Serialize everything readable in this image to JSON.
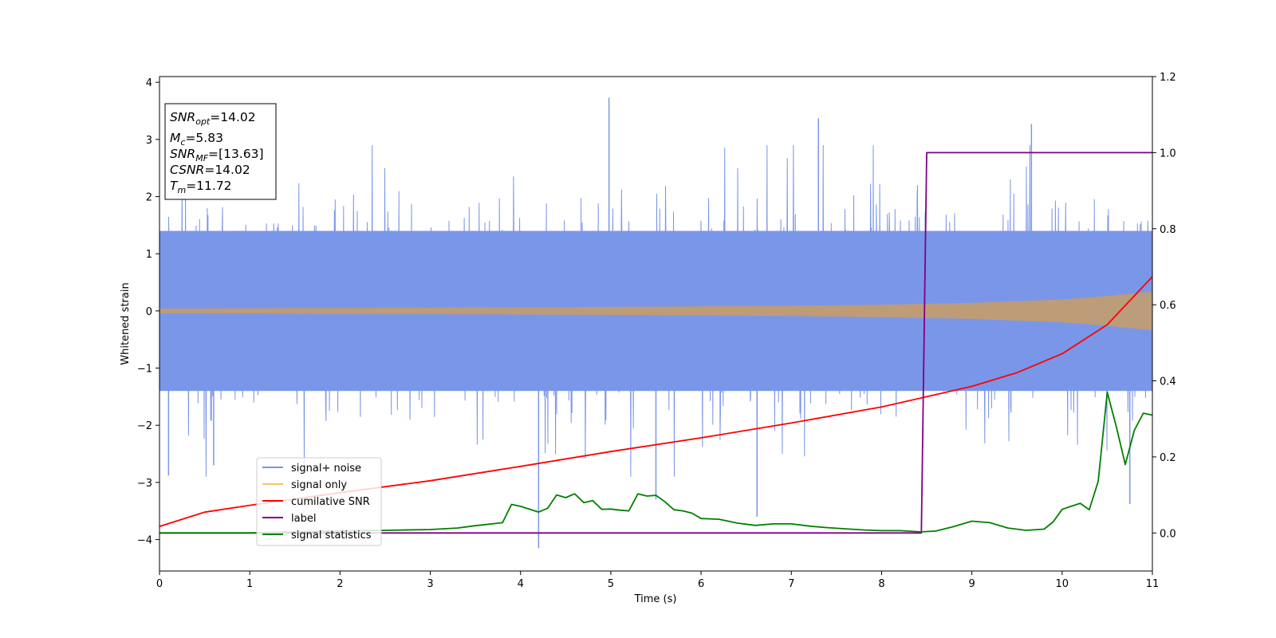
{
  "chart_data": {
    "type": "line",
    "xlabel": "Time (s)",
    "ylabel": "Whitened strain",
    "xlim": [
      0,
      11
    ],
    "ylim_left": [
      -4.55,
      4.1
    ],
    "ylim_right": [
      -0.1,
      1.2
    ],
    "x_ticks": [
      0,
      1,
      2,
      3,
      4,
      5,
      6,
      7,
      8,
      9,
      10,
      11
    ],
    "x_tick_labels": [
      "0",
      "1",
      "2",
      "3",
      "4",
      "5",
      "6",
      "7",
      "8",
      "9",
      "10",
      "11"
    ],
    "y_left_ticks": [
      -4,
      -3,
      -2,
      -1,
      0,
      1,
      2,
      3,
      4
    ],
    "y_left_tick_labels": [
      "−4",
      "−3",
      "−2",
      "−1",
      "0",
      "1",
      "2",
      "3",
      "4"
    ],
    "y_right_ticks": [
      0.0,
      0.2,
      0.4,
      0.6,
      0.8,
      1.0,
      1.2
    ],
    "y_right_tick_labels": [
      "0.0",
      "0.2",
      "0.4",
      "0.6",
      "0.8",
      "1.0",
      "1.2"
    ],
    "stats_box": [
      {
        "base": "SNR",
        "sub": "opt",
        "value": "=14.02"
      },
      {
        "base": "M",
        "sub": "c",
        "value": "=5.83"
      },
      {
        "base": "SNR",
        "sub": "MF",
        "value": "=[13.63]"
      },
      {
        "base": "CSNR",
        "sub": "",
        "value": "=14.02"
      },
      {
        "base": "T",
        "sub": "m",
        "value": "=11.72"
      }
    ],
    "legend": {
      "location": "lower left",
      "entries": [
        {
          "label": "signal+ noise",
          "color": "#7a96e8"
        },
        {
          "label": "signal only",
          "color": "#f5c26b"
        },
        {
          "label": "cumilative SNR",
          "color": "#ff0000"
        },
        {
          "label": "label",
          "color": "#800080"
        },
        {
          "label": "signal statistics",
          "color": "#008000"
        }
      ]
    },
    "series": [
      {
        "name": "signal+ noise",
        "axis": "left",
        "color": "#7a96e8",
        "kind": "noise",
        "core_amplitude": 1.4,
        "extreme_peaks": [
          {
            "x": 4.98,
            "y": 3.73
          },
          {
            "x": 9.66,
            "y": 3.27
          },
          {
            "x": 7.3,
            "y": 3.37
          },
          {
            "x": 4.2,
            "y": -4.15
          },
          {
            "x": 6.62,
            "y": -3.6
          },
          {
            "x": 5.5,
            "y": -3.3
          },
          {
            "x": 10.75,
            "y": -3.38
          },
          {
            "x": 0.1,
            "y": -2.88
          },
          {
            "x": 0.6,
            "y": -2.7
          }
        ]
      },
      {
        "name": "signal only",
        "axis": "left",
        "color": "#f5c26b",
        "kind": "chirp",
        "envelope": {
          "x": [
            0,
            2,
            4,
            6,
            7,
            8,
            9,
            10,
            10.5,
            11
          ],
          "y": [
            0.04,
            0.05,
            0.06,
            0.08,
            0.09,
            0.11,
            0.14,
            0.2,
            0.26,
            0.34
          ]
        }
      },
      {
        "name": "cumilative SNR",
        "axis": "left",
        "color": "#ff0000",
        "x": [
          0,
          0.5,
          1,
          2,
          3,
          4,
          5,
          6,
          7,
          8,
          8.5,
          9,
          9.5,
          10,
          10.5,
          11
        ],
        "y": [
          -3.77,
          -3.52,
          -3.4,
          -3.18,
          -2.97,
          -2.72,
          -2.46,
          -2.22,
          -1.96,
          -1.68,
          -1.5,
          -1.32,
          -1.08,
          -0.75,
          -0.24,
          0.6
        ]
      },
      {
        "name": "label",
        "axis": "right",
        "color": "#800080",
        "x": [
          0,
          8.44,
          8.5,
          11
        ],
        "y": [
          0.0,
          0.0,
          1.0,
          1.0
        ]
      },
      {
        "name": "signal statistics",
        "axis": "right",
        "color": "#008000",
        "x": [
          0,
          0.5,
          1,
          1.5,
          2,
          2.5,
          3,
          3.3,
          3.5,
          3.8,
          3.9,
          4.0,
          4.2,
          4.3,
          4.4,
          4.5,
          4.6,
          4.7,
          4.8,
          4.9,
          5.0,
          5.1,
          5.2,
          5.3,
          5.4,
          5.5,
          5.6,
          5.7,
          5.8,
          5.9,
          6.0,
          6.2,
          6.4,
          6.6,
          6.8,
          7.0,
          7.2,
          7.4,
          7.6,
          7.8,
          8.0,
          8.2,
          8.44,
          8.6,
          8.8,
          9.0,
          9.2,
          9.4,
          9.6,
          9.8,
          9.9,
          10.0,
          10.1,
          10.2,
          10.3,
          10.4,
          10.5,
          10.6,
          10.7,
          10.8,
          10.9,
          11.0
        ],
        "y": [
          0.0,
          0.0,
          0.0,
          0.003,
          0.005,
          0.007,
          0.009,
          0.013,
          0.019,
          0.027,
          0.075,
          0.07,
          0.055,
          0.065,
          0.1,
          0.093,
          0.103,
          0.08,
          0.085,
          0.062,
          0.063,
          0.06,
          0.058,
          0.103,
          0.097,
          0.099,
          0.082,
          0.061,
          0.058,
          0.052,
          0.038,
          0.036,
          0.026,
          0.02,
          0.024,
          0.024,
          0.018,
          0.014,
          0.011,
          0.008,
          0.006,
          0.006,
          0.003,
          0.005,
          0.017,
          0.031,
          0.027,
          0.013,
          0.007,
          0.01,
          0.029,
          0.062,
          0.07,
          0.078,
          0.061,
          0.136,
          0.37,
          0.28,
          0.18,
          0.27,
          0.315,
          0.31
        ]
      }
    ]
  }
}
